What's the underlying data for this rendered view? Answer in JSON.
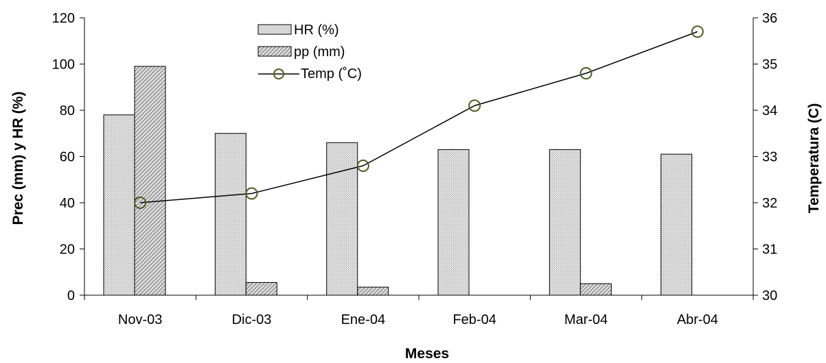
{
  "chart_data": {
    "type": "bar",
    "categories": [
      "Nov-03",
      "Dic-03",
      "Ene-04",
      "Feb-04",
      "Mar-04",
      "Abr-04"
    ],
    "series": [
      {
        "name": "HR (%)",
        "kind": "bar",
        "axis": "left",
        "color": "#d9d9d9",
        "values": [
          78,
          70,
          66,
          63,
          63,
          61
        ]
      },
      {
        "name": "pp (mm)",
        "kind": "bar",
        "axis": "left",
        "color": "#a6a6a6",
        "pattern": "hatched",
        "values": [
          99,
          5.5,
          3.5,
          0,
          5,
          0
        ]
      },
      {
        "name": "Temp (˚C)",
        "kind": "line",
        "axis": "right",
        "color": "#000000",
        "marker_color": "#4d5a1e",
        "values": [
          32.0,
          32.2,
          32.8,
          34.1,
          34.8,
          35.7
        ]
      }
    ],
    "xlabel": "Meses",
    "ylabel": "Prec (mm) y HR (%)",
    "y2label": "Temperatura (C)",
    "ylim": [
      0,
      120
    ],
    "yticks": [
      0,
      20,
      40,
      60,
      80,
      100,
      120
    ],
    "y2lim": [
      30,
      36
    ],
    "y2ticks": [
      30,
      31,
      32,
      33,
      34,
      35,
      36
    ],
    "grid": false,
    "legend": "top-center"
  }
}
